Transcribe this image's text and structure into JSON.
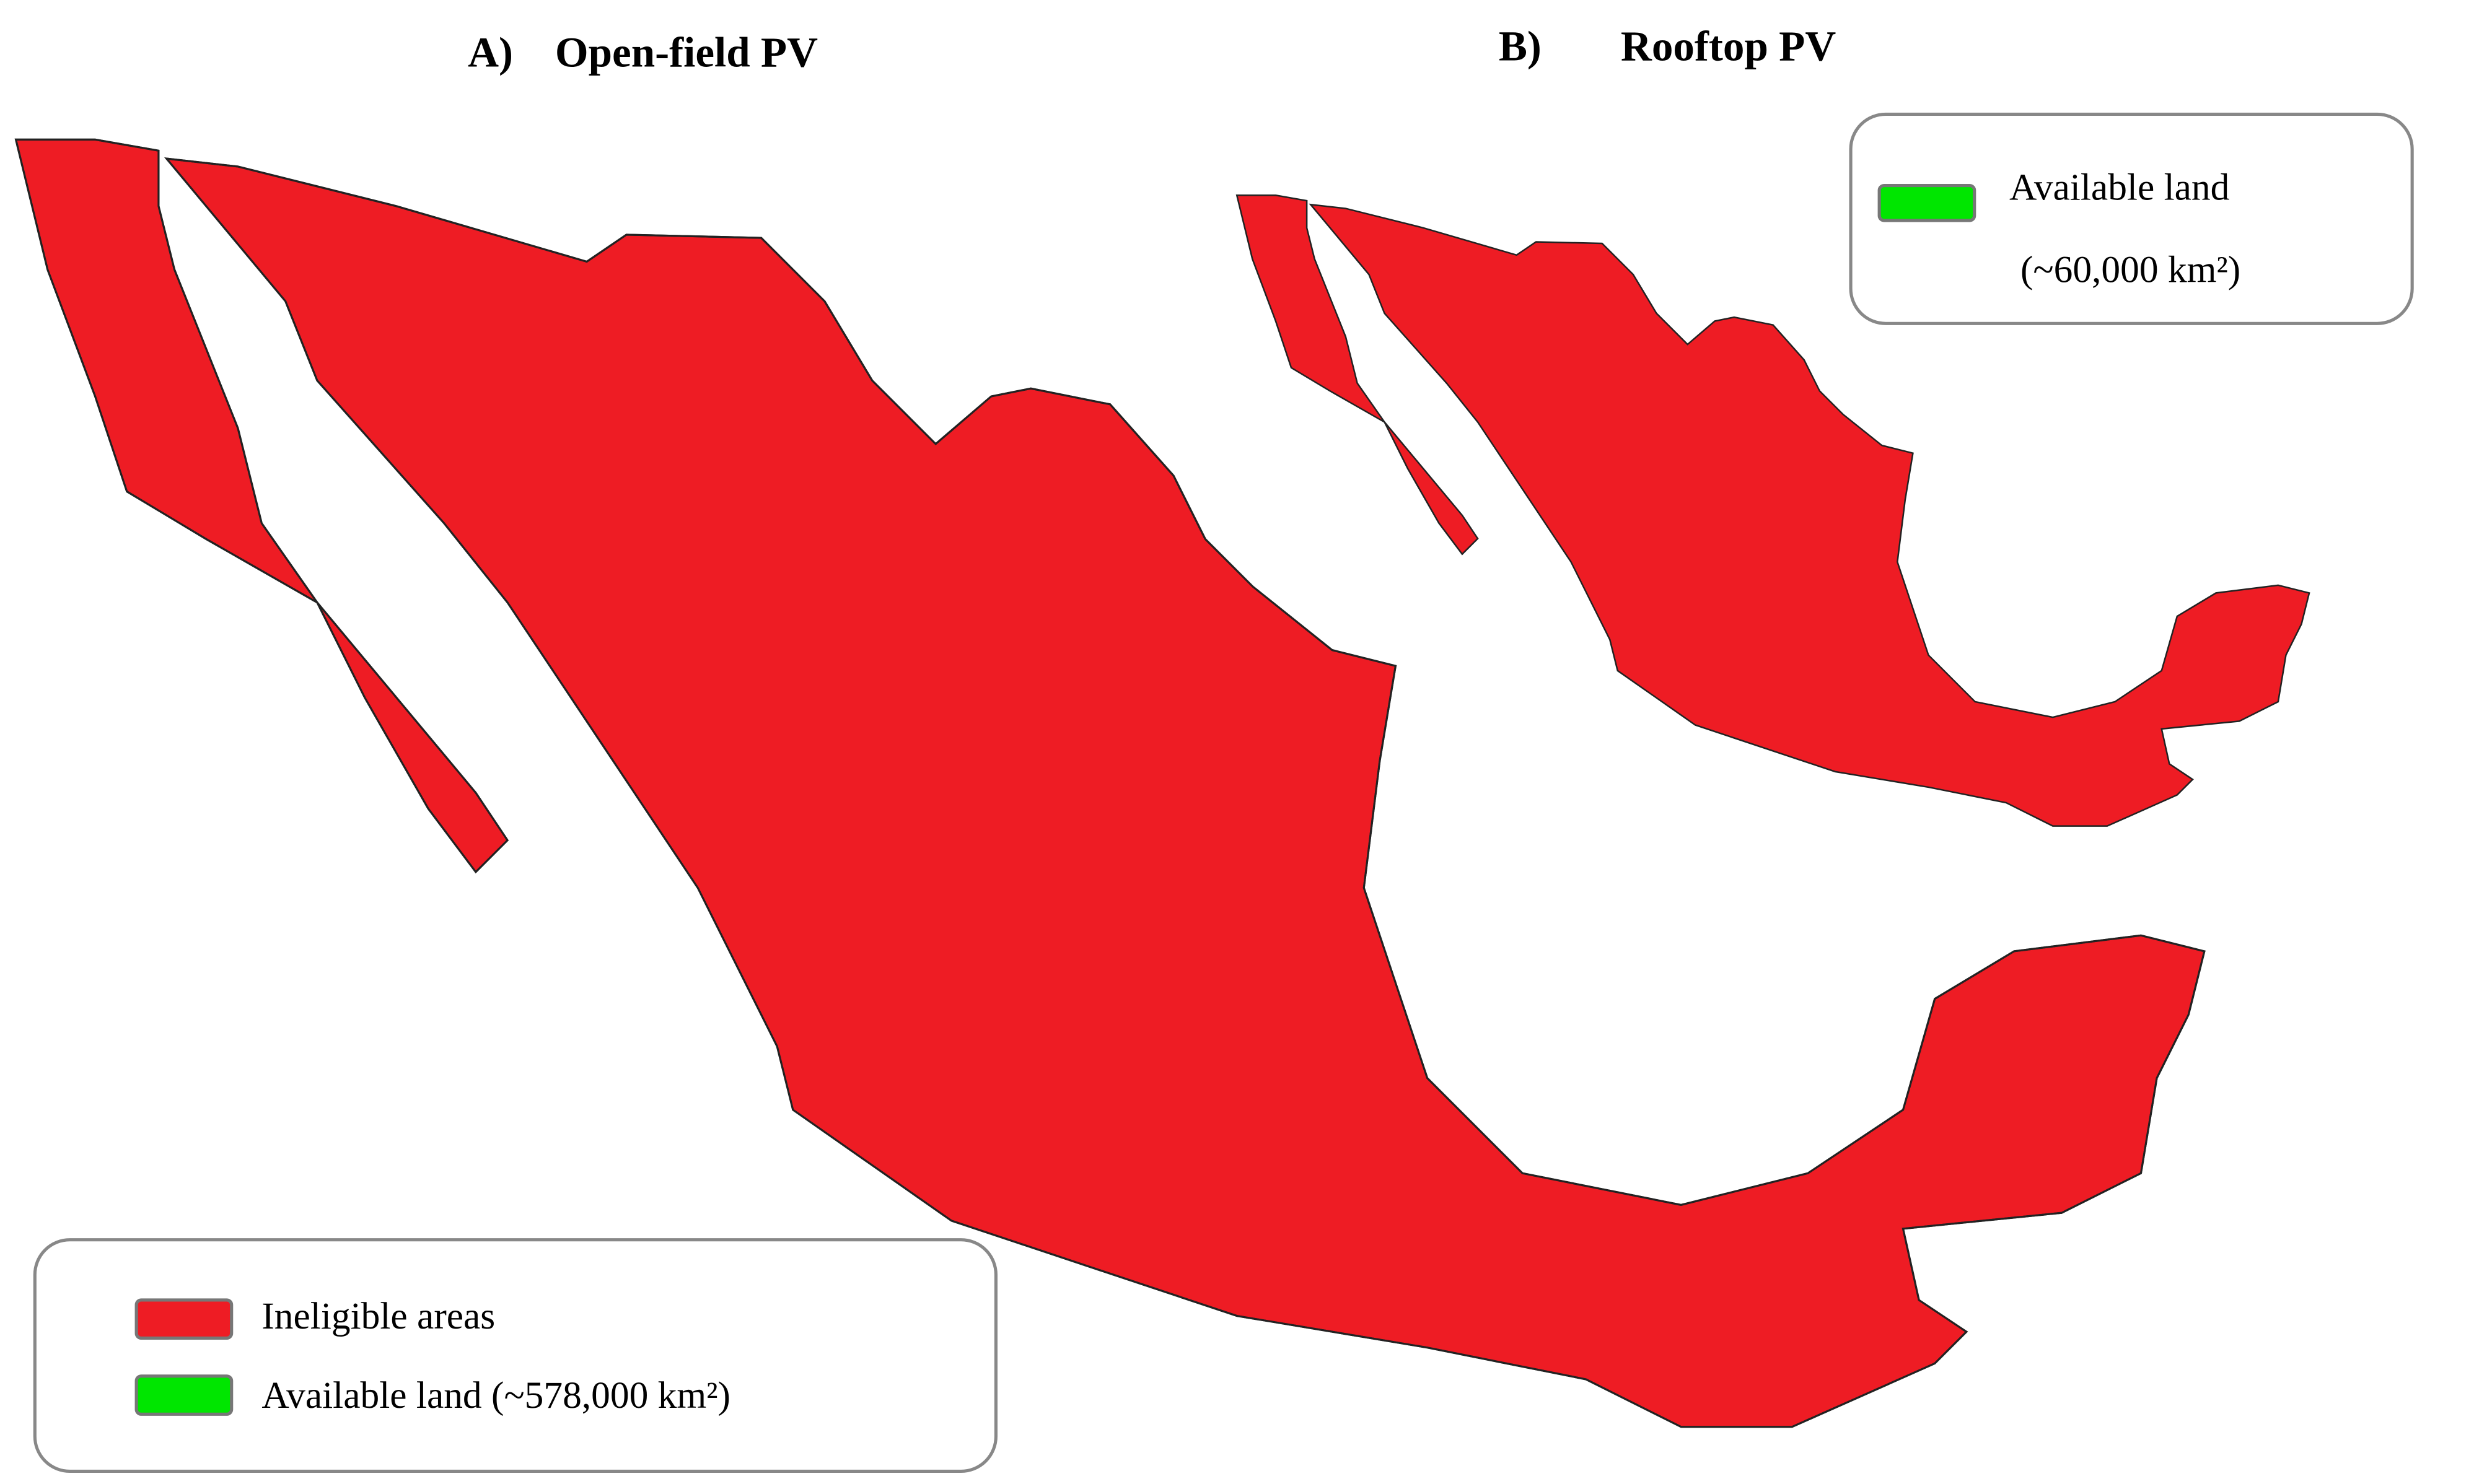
{
  "panel_a": {
    "label": "A)",
    "title": "Open-field PV",
    "legend": [
      {
        "label": "Ineligible areas",
        "color": "#ee1c24"
      },
      {
        "label": "Available land (~578,000 km²)",
        "color": "#00e600"
      }
    ]
  },
  "panel_b": {
    "label": "B)",
    "title": "Rooftop PV",
    "legend": [
      {
        "label": "Available land",
        "sublabel": "(~60,000 km²)",
        "color": "#00e600"
      }
    ]
  }
}
